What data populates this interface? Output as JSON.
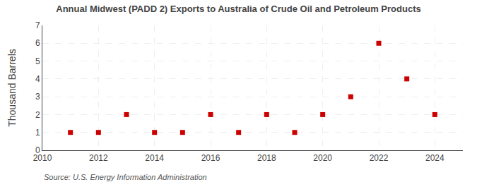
{
  "chart_data": {
    "type": "scatter",
    "title": "Annual Midwest (PADD 2) Exports to Australia of Crude Oil and Petroleum Products",
    "ylabel": "Thousand Barrels",
    "annotations": [
      "Source: U.S. Energy Information Administration"
    ],
    "x": [
      2011,
      2012,
      2013,
      2014,
      2015,
      2016,
      2017,
      2018,
      2019,
      2020,
      2021,
      2022,
      2023,
      2024
    ],
    "values": [
      1,
      1,
      2,
      1,
      1,
      2,
      1,
      2,
      1,
      2,
      3,
      6,
      4,
      2
    ],
    "color": "#cc0000",
    "marker": "square",
    "xlim": [
      2010,
      2025
    ],
    "ylim": [
      0,
      7
    ],
    "xticks": [
      2010,
      2012,
      2014,
      2016,
      2018,
      2020,
      2022,
      2024
    ],
    "yticks": [
      0,
      1,
      2,
      3,
      4,
      5,
      6,
      7
    ],
    "grid": true
  }
}
